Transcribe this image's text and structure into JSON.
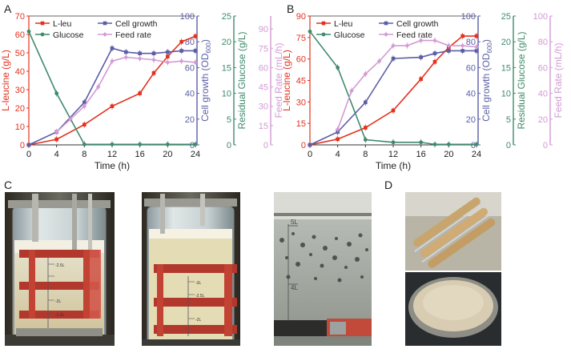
{
  "panels": {
    "A": "A",
    "B": "B",
    "C": "C",
    "D": "D"
  },
  "colors": {
    "leu": "#e2321f",
    "growth": "#5b5ea6",
    "glucose": "#3f8a6c",
    "feed": "#d39ad4"
  },
  "chart_data": [
    {
      "type": "line",
      "panel": "A",
      "xlabel": "Time (h)",
      "x_ticks": [
        "0",
        "4",
        "8",
        "12",
        "16",
        "20",
        "24"
      ],
      "xlim": [
        0,
        24
      ],
      "axes": [
        {
          "label": "L-leucine (g/L)",
          "min": 0,
          "max": 70,
          "ticks": [
            "0",
            "10",
            "20",
            "30",
            "40",
            "50",
            "60",
            "70"
          ],
          "color": "#e2321f"
        },
        {
          "label": "Cell growth (OD600)",
          "label_main": "Cell growth (OD",
          "label_sub": "600",
          "label_end": ")",
          "min": 0,
          "max": 100,
          "ticks": [
            "0",
            "20",
            "40",
            "60",
            "80",
            "100"
          ],
          "color": "#5b5ea6"
        },
        {
          "label": "Residual Glucose (g/L)",
          "min": 0,
          "max": 25,
          "ticks": [
            "0",
            "5",
            "10",
            "15",
            "20",
            "25"
          ],
          "color": "#3f8a6c"
        },
        {
          "label": "Feed Rate (mL/h)",
          "min": 0,
          "max": 100,
          "ticks": [
            "0",
            "15",
            "30",
            "45",
            "60",
            "75",
            "90"
          ],
          "color": "#d39ad4"
        }
      ],
      "legend": [
        "L-leu",
        "Cell growth",
        "Glucose",
        "Feed rate"
      ],
      "legend_position": "top-left",
      "series": [
        {
          "name": "L-leu",
          "axis": 0,
          "x": [
            0,
            4,
            8,
            12,
            16,
            18,
            20,
            22,
            24
          ],
          "y": [
            0,
            3,
            11,
            21,
            28,
            39,
            48,
            56,
            59
          ]
        },
        {
          "name": "Cell growth",
          "axis": 1,
          "x": [
            0,
            4,
            8,
            12,
            14,
            16,
            18,
            20,
            22,
            24
          ],
          "y": [
            0,
            10,
            33,
            75,
            72,
            71,
            71,
            72,
            73,
            73
          ]
        },
        {
          "name": "Glucose",
          "axis": 2,
          "x": [
            0,
            4,
            8,
            12,
            16,
            20,
            24
          ],
          "y": [
            22,
            10,
            0.1,
            0.1,
            0.1,
            0.1,
            0.1
          ]
        },
        {
          "name": "Feed rate",
          "axis": 3,
          "x": [
            4,
            6,
            8,
            10,
            12,
            14,
            16,
            18,
            20,
            22,
            24
          ],
          "y": [
            10,
            20,
            30,
            45,
            65,
            68,
            67,
            66,
            64,
            65,
            64
          ]
        }
      ]
    },
    {
      "type": "line",
      "panel": "B",
      "xlabel": "Time (h)",
      "x_ticks": [
        "0",
        "4",
        "8",
        "12",
        "16",
        "20",
        "24"
      ],
      "xlim": [
        0,
        24
      ],
      "axes": [
        {
          "label": "L-leucine (g/L)",
          "min": 0,
          "max": 90,
          "ticks": [
            "0",
            "15",
            "30",
            "45",
            "60",
            "75",
            "90"
          ],
          "color": "#e2321f"
        },
        {
          "label": "Cell growth (OD600)",
          "label_main": "Cell growth (OD",
          "label_sub": "600",
          "label_end": ")",
          "min": 0,
          "max": 100,
          "ticks": [
            "0",
            "20",
            "40",
            "60",
            "80",
            "100"
          ],
          "color": "#5b5ea6"
        },
        {
          "label": "Residual Glucose (g/L)",
          "min": 0,
          "max": 25,
          "ticks": [
            "0",
            "5",
            "10",
            "15",
            "20",
            "25"
          ],
          "color": "#3f8a6c"
        },
        {
          "label": "Feed Rate (mL/h)",
          "min": 0,
          "max": 100,
          "ticks": [
            "0",
            "20",
            "40",
            "60",
            "80",
            "100"
          ],
          "color": "#d39ad4"
        }
      ],
      "legend": [
        "L-leu",
        "Cell growth",
        "Glucose",
        "Feed rate"
      ],
      "legend_position": "top-left",
      "series": [
        {
          "name": "L-leu",
          "axis": 0,
          "x": [
            0,
            4,
            8,
            12,
            16,
            18,
            20,
            22,
            24
          ],
          "y": [
            0,
            4,
            12,
            24,
            46,
            58,
            68,
            76,
            76
          ]
        },
        {
          "name": "Cell growth",
          "axis": 1,
          "x": [
            0,
            4,
            8,
            12,
            16,
            18,
            20,
            22,
            24
          ],
          "y": [
            0,
            10,
            33,
            67,
            68,
            71,
            73,
            73,
            73
          ]
        },
        {
          "name": "Glucose",
          "axis": 2,
          "x": [
            0,
            4,
            8,
            12,
            16,
            18,
            20,
            24
          ],
          "y": [
            22,
            15,
            1,
            0.5,
            0.5,
            0.1,
            0.1,
            0.1
          ]
        },
        {
          "name": "Feed rate",
          "axis": 3,
          "x": [
            4,
            6,
            8,
            10,
            12,
            14,
            16,
            18,
            20,
            22,
            24
          ],
          "y": [
            12,
            42,
            55,
            65,
            77,
            77,
            81,
            81,
            77,
            77,
            76
          ]
        }
      ]
    }
  ],
  "photos": {
    "C1": {
      "marks": [
        "-2.5L",
        "-2L",
        "-1.5L"
      ]
    },
    "C2": {
      "marks": [
        "-3L",
        "-2.5L",
        "-2L"
      ]
    },
    "C3": {
      "marks": [
        "5L",
        "4L"
      ]
    }
  }
}
